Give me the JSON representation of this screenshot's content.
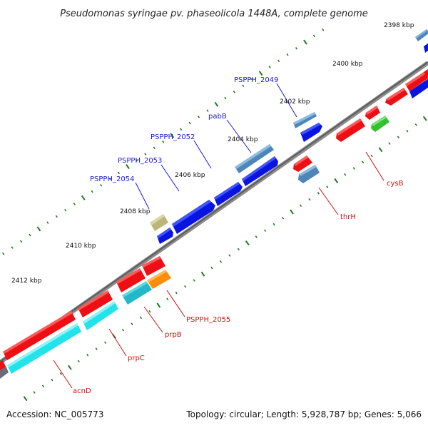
{
  "title": "Pseudomonas syringae pv. phaseolicola 1448A, complete genome",
  "footer": {
    "accession": "Accession: NC_005773",
    "summary": "Topology: circular; Length: 5,928,787 bp; Genes: 5,066"
  },
  "ticks": {
    "t2398": "2398 kbp",
    "t2400": "2400 kbp",
    "t2402": "2402 kbp",
    "t2404": "2404 kbp",
    "t2406": "2406 kbp",
    "t2408": "2408 kbp",
    "t2410": "2410 kbp",
    "t2412": "2412 kbp"
  },
  "genes": {
    "PSPPH_2049": "PSPPH_2049",
    "pabB": "pabB",
    "PSPPH_2052": "PSPPH_2052",
    "PSPPH_2053": "PSPPH_2053",
    "PSPPH_2054": "PSPPH_2054",
    "cysB": "cysB",
    "thrH": "thrH",
    "PSPPH_2055": "PSPPH_2055",
    "prpB": "prpB",
    "prpC": "prpC",
    "acnD": "acnD"
  },
  "colors": {
    "forward_cds": "#0a14e0",
    "reverse_cds": "#ee0f14",
    "steel": "#4f86b8",
    "cyan": "#22e2ea",
    "orange": "#ff8c0a",
    "green": "#33c02e",
    "khaki": "#bcb57a",
    "backbone": "#7a7a7a"
  }
}
